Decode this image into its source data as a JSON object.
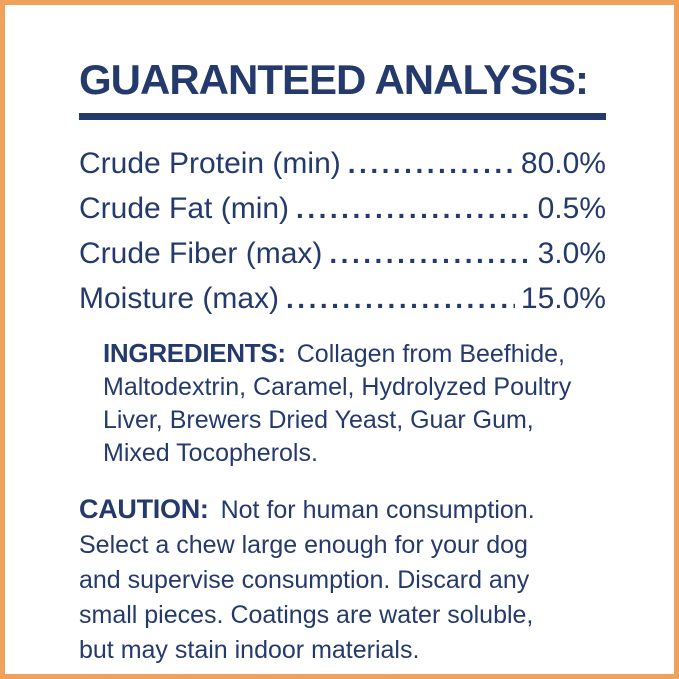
{
  "colors": {
    "navy": "#253a6c",
    "border_orange": "#efa25c"
  },
  "title": "GUARANTEED ANALYSIS:",
  "analysis": {
    "rows": [
      {
        "label": "Crude Protein (min)",
        "value": "80.0%"
      },
      {
        "label": "Crude Fat (min)",
        "value": "0.5%"
      },
      {
        "label": "Crude Fiber (max)",
        "value": "3.0%"
      },
      {
        "label": "Moisture (max)",
        "value": "15.0%"
      }
    ]
  },
  "ingredients": {
    "label": "INGREDIENTS:",
    "full_text": "Collagen from Beefhide, Maltodextrin, Caramel, Hydrolyzed Poultry Liver, Brewers Dried Yeast, Guar Gum, Mixed Tocopherols.",
    "lines": [
      "Collagen from Beefhide,",
      "Maltodextrin, Caramel, Hydrolyzed Poultry",
      "Liver, Brewers Dried Yeast, Guar Gum,",
      "Mixed Tocopherols."
    ]
  },
  "caution": {
    "label": "CAUTION:",
    "full_text": "Not for human consumption. Select a chew large enough for your dog and supervise consumption. Discard any small pieces. Coatings are water soluble, but may stain indoor materials.",
    "lines": [
      "Not for human consumption.",
      "Select a chew large enough for your dog",
      "and supervise consumption. Discard any",
      "small pieces. Coatings are water soluble,",
      "but may stain indoor materials."
    ]
  }
}
